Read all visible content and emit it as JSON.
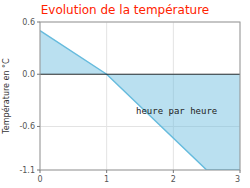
{
  "chart_data": {
    "type": "area",
    "title": "Evolution de la température",
    "y_label": "Température en °C",
    "x": [
      0,
      1,
      2.5,
      3
    ],
    "values": [
      0.5,
      0.0,
      -1.1,
      -1.1
    ],
    "color": "#66bbdd",
    "xlim": [
      0,
      3
    ],
    "ylim": [
      -1.1,
      0.6
    ],
    "xticks": [
      0,
      1,
      2,
      3
    ],
    "yticks": [
      -1.1,
      -0.6,
      {
        "value": 0.0,
        "label": "0.0"
      },
      0.6
    ],
    "grid": true,
    "annotations": [
      {
        "text": "heure par heure",
        "x": 2.05,
        "y": -0.42
      }
    ]
  }
}
